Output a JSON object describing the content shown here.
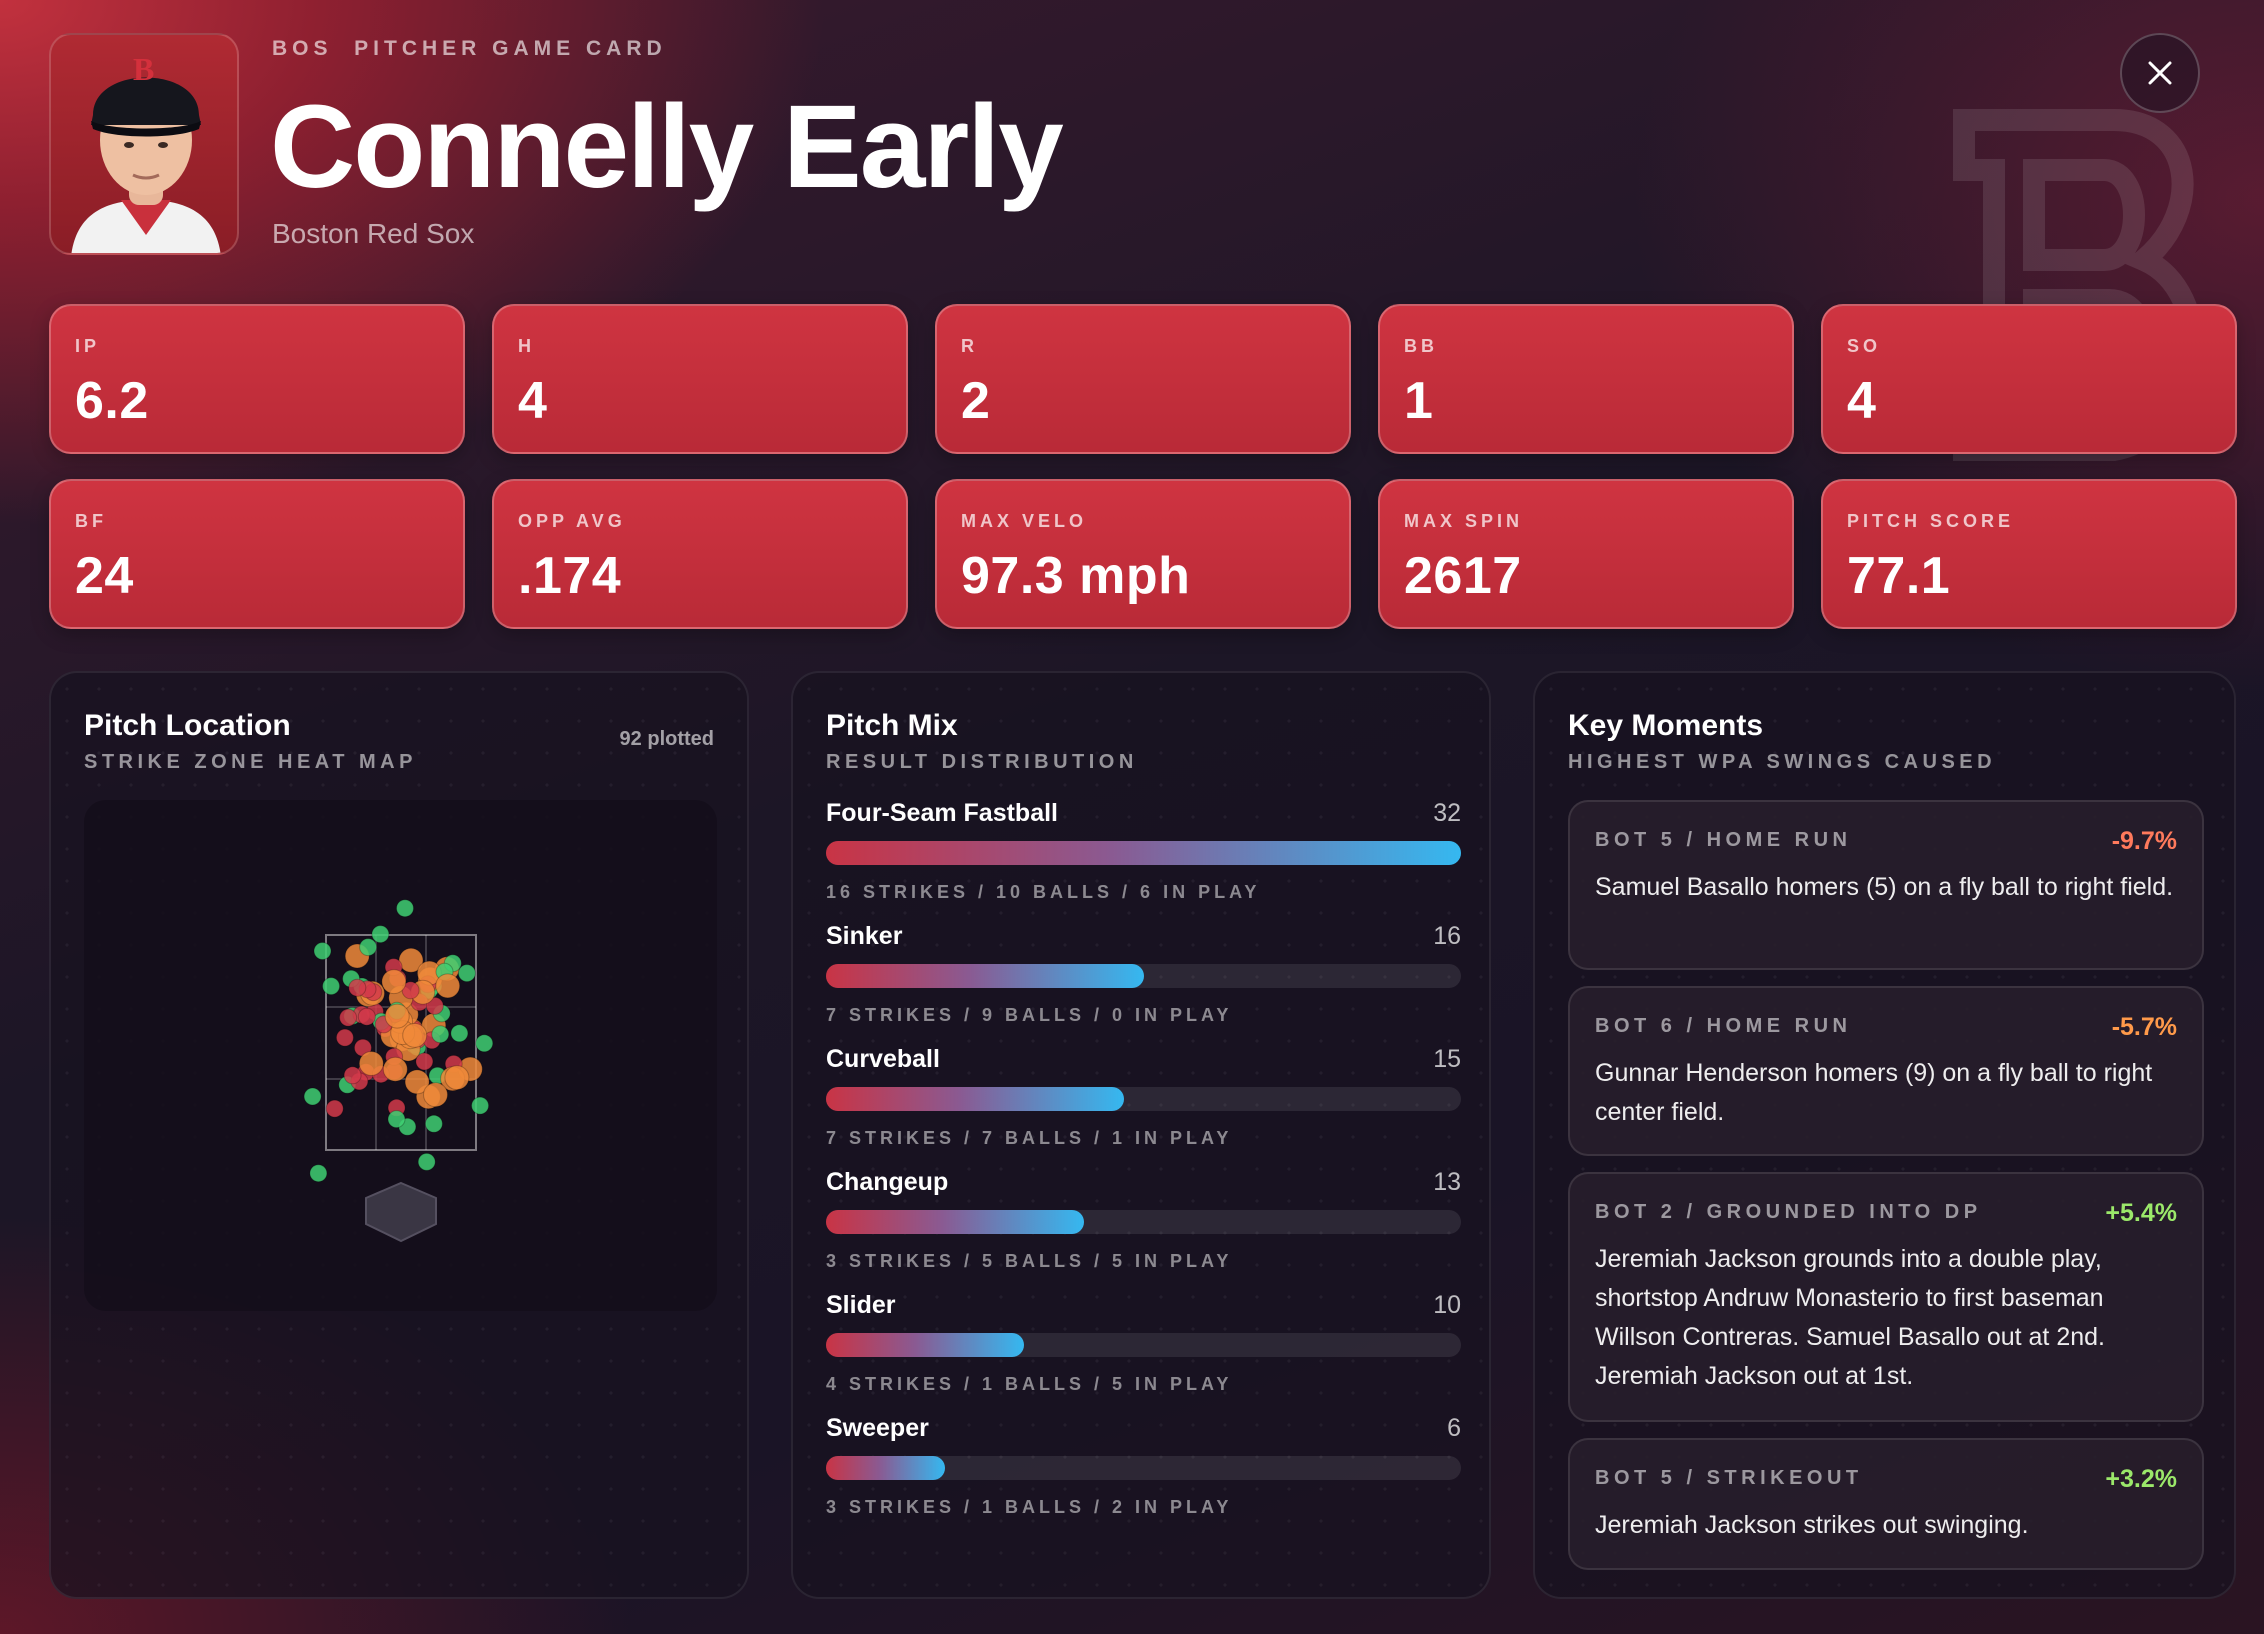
{
  "header": {
    "eyebrow": "BOS  PITCHER GAME CARD",
    "player_name": "Connelly Early",
    "team_name": "Boston Red Sox",
    "cap_logo": "B"
  },
  "stats": [
    {
      "label": "IP",
      "value": "6.2"
    },
    {
      "label": "H",
      "value": "4"
    },
    {
      "label": "R",
      "value": "2"
    },
    {
      "label": "BB",
      "value": "1"
    },
    {
      "label": "SO",
      "value": "4"
    },
    {
      "label": "BF",
      "value": "24"
    },
    {
      "label": "OPP AVG",
      "value": ".174"
    },
    {
      "label": "MAX VELO",
      "value": "97.3 mph"
    },
    {
      "label": "MAX SPIN",
      "value": "2617"
    },
    {
      "label": "PITCH SCORE",
      "value": "77.1"
    }
  ],
  "location": {
    "title": "Pitch Location",
    "subtitle": "STRIKE ZONE HEAT MAP",
    "plotted": "92 plotted",
    "colors": {
      "red": "#d23a4a",
      "orange": "#f08a3a",
      "green": "#3ecf72"
    }
  },
  "mix": {
    "title": "Pitch Mix",
    "subtitle": "RESULT DISTRIBUTION",
    "max": 32,
    "items": [
      {
        "name": "Four-Seam Fastball",
        "count": 32,
        "count_label": "32",
        "detail": "16 STRIKES / 10 BALLS / 6 IN PLAY"
      },
      {
        "name": "Sinker",
        "count": 16,
        "count_label": "16",
        "detail": "7 STRIKES / 9 BALLS / 0 IN PLAY"
      },
      {
        "name": "Curveball",
        "count": 15,
        "count_label": "15",
        "detail": "7 STRIKES / 7 BALLS / 1 IN PLAY"
      },
      {
        "name": "Changeup",
        "count": 13,
        "count_label": "13",
        "detail": "3 STRIKES / 5 BALLS / 5 IN PLAY"
      },
      {
        "name": "Slider",
        "count": 10,
        "count_label": "10",
        "detail": "4 STRIKES / 1 BALLS / 5 IN PLAY"
      },
      {
        "name": "Sweeper",
        "count": 6,
        "count_label": "6",
        "detail": "3 STRIKES / 1 BALLS / 2 IN PLAY"
      }
    ]
  },
  "moments": {
    "title": "Key Moments",
    "subtitle": "HIGHEST WPA SWINGS CAUSED",
    "items": [
      {
        "head": "BOT 5 / HOME RUN",
        "wpa": "-9.7%",
        "color": "#ff7a5c",
        "text": "Samuel Basallo homers (5) on a fly ball to right field."
      },
      {
        "head": "BOT 6 / HOME RUN",
        "wpa": "-5.7%",
        "color": "#ff9a4a",
        "text": "Gunnar Henderson homers (9) on a fly ball to right center field."
      },
      {
        "head": "BOT 2 / GROUNDED INTO DP",
        "wpa": "+5.4%",
        "color": "#9be86a",
        "text": "Jeremiah Jackson grounds into a double play, shortstop Andruw Monasterio to first baseman Willson Contreras. Samuel Basallo out at 2nd. Jeremiah Jackson out at 1st."
      },
      {
        "head": "BOT 5 / STRIKEOUT",
        "wpa": "+3.2%",
        "color": "#9be86a",
        "text": "Jeremiah Jackson strikes out swinging."
      }
    ]
  }
}
